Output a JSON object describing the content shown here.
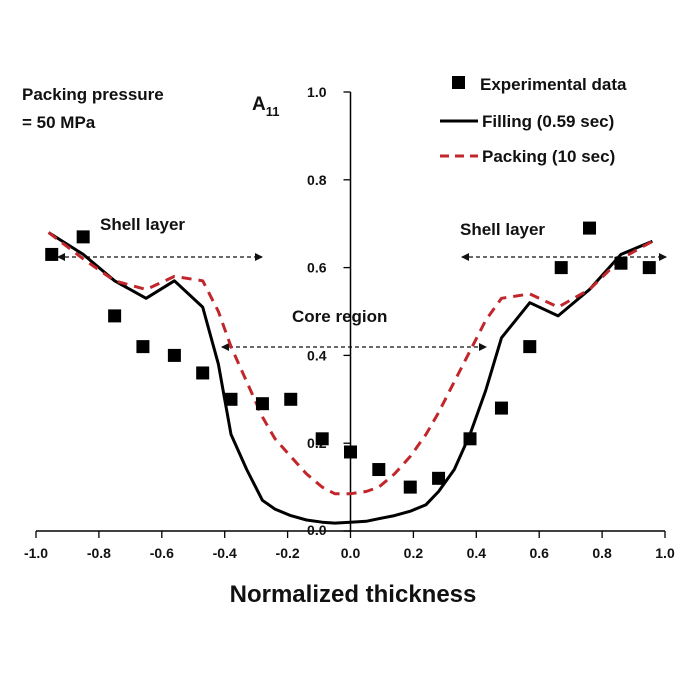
{
  "chart_data": {
    "type": "line",
    "title": "",
    "xlabel": "Normalized thickness",
    "ylabel": "A11",
    "ylabel_main": "A",
    "ylabel_sub": "11",
    "xlim": [
      -1.0,
      1.0
    ],
    "ylim": [
      0.0,
      1.0
    ],
    "x_ticks": [
      "-1.0",
      "-0.8",
      "-0.6",
      "-0.4",
      "-0.2",
      "0.0",
      "0.2",
      "0.4",
      "0.6",
      "0.8",
      "1.0"
    ],
    "y_ticks": [
      "0.0",
      "0.2",
      "0.4",
      "0.6",
      "0.8",
      "1.0"
    ],
    "legend_position": "top-right",
    "series": [
      {
        "name": "Experimental data",
        "kind": "scatter",
        "color": "#000000",
        "x": [
          -0.95,
          -0.85,
          -0.75,
          -0.66,
          -0.56,
          -0.47,
          -0.38,
          -0.28,
          -0.19,
          -0.09,
          0.0,
          0.09,
          0.19,
          0.28,
          0.38,
          0.48,
          0.57,
          0.67,
          0.76,
          0.86,
          0.95
        ],
        "y": [
          0.63,
          0.67,
          0.49,
          0.42,
          0.4,
          0.36,
          0.3,
          0.29,
          0.3,
          0.21,
          0.18,
          0.14,
          0.1,
          0.12,
          0.21,
          0.28,
          0.42,
          0.6,
          0.69,
          0.61,
          0.6
        ]
      },
      {
        "name": "Filling (0.59 sec)",
        "kind": "line",
        "color": "#000000",
        "dashed": false,
        "x": [
          -0.96,
          -0.85,
          -0.75,
          -0.65,
          -0.56,
          -0.47,
          -0.42,
          -0.38,
          -0.33,
          -0.28,
          -0.24,
          -0.19,
          -0.14,
          -0.09,
          -0.05,
          0.0,
          0.05,
          0.09,
          0.14,
          0.19,
          0.24,
          0.28,
          0.33,
          0.38,
          0.43,
          0.48,
          0.57,
          0.66,
          0.76,
          0.86,
          0.96
        ],
        "y": [
          0.68,
          0.63,
          0.57,
          0.53,
          0.57,
          0.51,
          0.38,
          0.22,
          0.14,
          0.07,
          0.05,
          0.035,
          0.025,
          0.02,
          0.018,
          0.02,
          0.022,
          0.028,
          0.035,
          0.045,
          0.06,
          0.09,
          0.14,
          0.22,
          0.32,
          0.44,
          0.52,
          0.49,
          0.55,
          0.63,
          0.66
        ]
      },
      {
        "name": "Packing (10 sec)",
        "kind": "line",
        "color": "#c0262a",
        "dashed": true,
        "x": [
          -0.96,
          -0.85,
          -0.75,
          -0.65,
          -0.56,
          -0.47,
          -0.42,
          -0.38,
          -0.33,
          -0.28,
          -0.24,
          -0.19,
          -0.14,
          -0.09,
          -0.05,
          0.0,
          0.05,
          0.09,
          0.14,
          0.19,
          0.24,
          0.28,
          0.33,
          0.38,
          0.43,
          0.48,
          0.57,
          0.66,
          0.76,
          0.86,
          0.96
        ],
        "y": [
          0.68,
          0.62,
          0.57,
          0.55,
          0.58,
          0.57,
          0.5,
          0.42,
          0.34,
          0.26,
          0.21,
          0.17,
          0.13,
          0.1,
          0.085,
          0.085,
          0.09,
          0.1,
          0.13,
          0.17,
          0.22,
          0.27,
          0.34,
          0.41,
          0.48,
          0.53,
          0.54,
          0.51,
          0.55,
          0.62,
          0.66
        ]
      }
    ],
    "annotations": {
      "packing_pressure_line1": "Packing pressure",
      "packing_pressure_line2": "= 50 MPa",
      "shell_layer_left": "Shell layer",
      "shell_layer_right": "Shell layer",
      "core_region": "Core region"
    }
  }
}
